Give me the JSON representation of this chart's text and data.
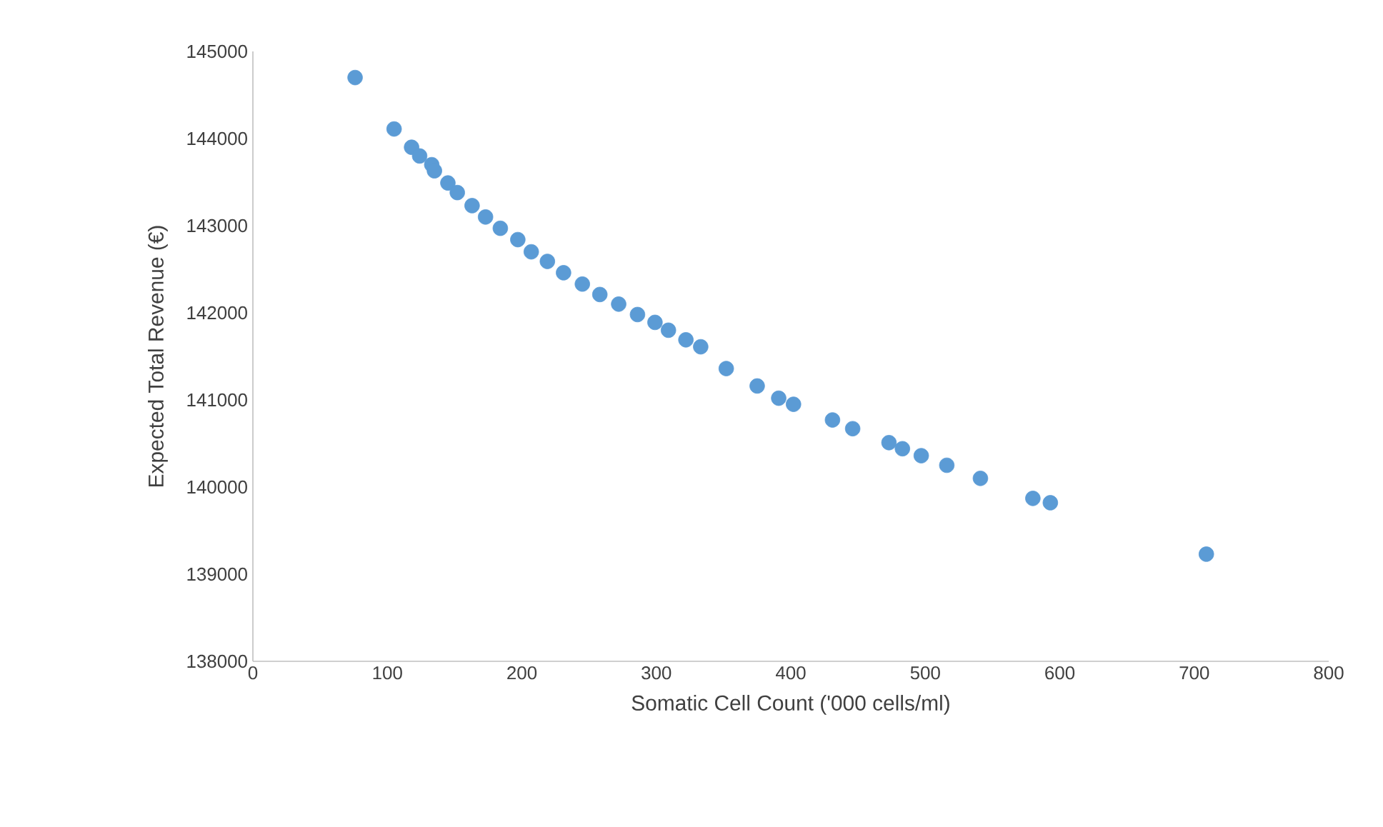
{
  "chart_data": {
    "type": "scatter",
    "xlabel": "Somatic Cell Count ('000 cells/ml)",
    "ylabel": "Expected Total Revenue (€)",
    "xlim": [
      0,
      800
    ],
    "xticks": [
      0,
      100,
      200,
      300,
      400,
      500,
      600,
      700,
      800
    ],
    "ylim": [
      138000,
      145000
    ],
    "yticks": [
      138000,
      139000,
      140000,
      141000,
      142000,
      143000,
      144000,
      145000
    ],
    "grid": false,
    "series": [
      {
        "color": "#5b9bd5",
        "x": [
          76,
          105,
          118,
          124,
          133,
          135,
          145,
          152,
          163,
          173,
          184,
          197,
          207,
          219,
          231,
          245,
          258,
          272,
          286,
          299,
          309,
          322,
          333,
          352,
          375,
          391,
          402,
          431,
          446,
          473,
          483,
          497,
          516,
          541,
          580,
          593,
          709
        ],
        "values": [
          144700,
          144110,
          143900,
          143800,
          143700,
          143630,
          143490,
          143380,
          143230,
          143100,
          142970,
          142840,
          142700,
          142590,
          142460,
          142330,
          142210,
          142100,
          141980,
          141890,
          141800,
          141690,
          141610,
          141360,
          141160,
          141020,
          140950,
          140770,
          140670,
          140510,
          140440,
          140360,
          140250,
          140100,
          139870,
          139820,
          139230
        ]
      }
    ]
  }
}
